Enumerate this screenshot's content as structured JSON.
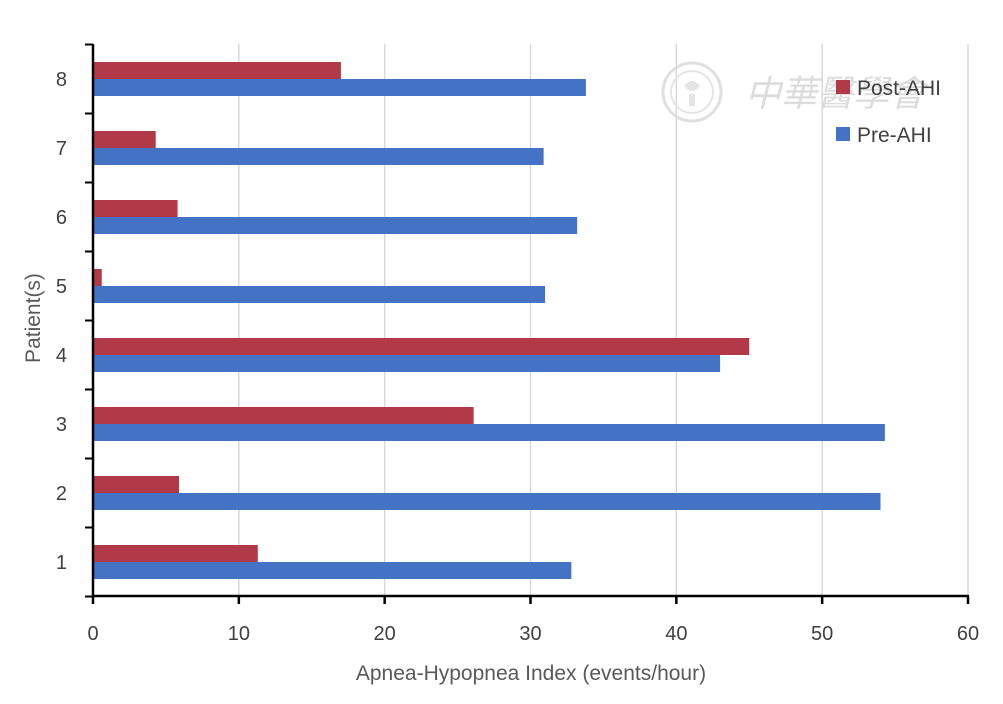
{
  "chart_data": {
    "type": "bar",
    "orientation": "horizontal",
    "categories": [
      "1",
      "2",
      "3",
      "4",
      "5",
      "6",
      "7",
      "8"
    ],
    "series": [
      {
        "name": "Post-AHI",
        "color": "#b23a48",
        "values": [
          11.3,
          5.9,
          26.1,
          45.0,
          0.6,
          5.8,
          4.3,
          17.0
        ]
      },
      {
        "name": "Pre-AHI",
        "color": "#4472c4",
        "values": [
          32.8,
          54.0,
          54.3,
          43.0,
          31.0,
          33.2,
          30.9,
          33.8
        ]
      }
    ],
    "xlabel": "Apnea-Hypopnea Index (events/hour)",
    "ylabel": "Patient(s)",
    "xlim": [
      0,
      60
    ],
    "xticks": [
      "0",
      "10",
      "20",
      "30",
      "40",
      "50",
      "60"
    ],
    "grid": "vertical",
    "legend_position": "top-right",
    "watermark": "中華醫學會"
  }
}
